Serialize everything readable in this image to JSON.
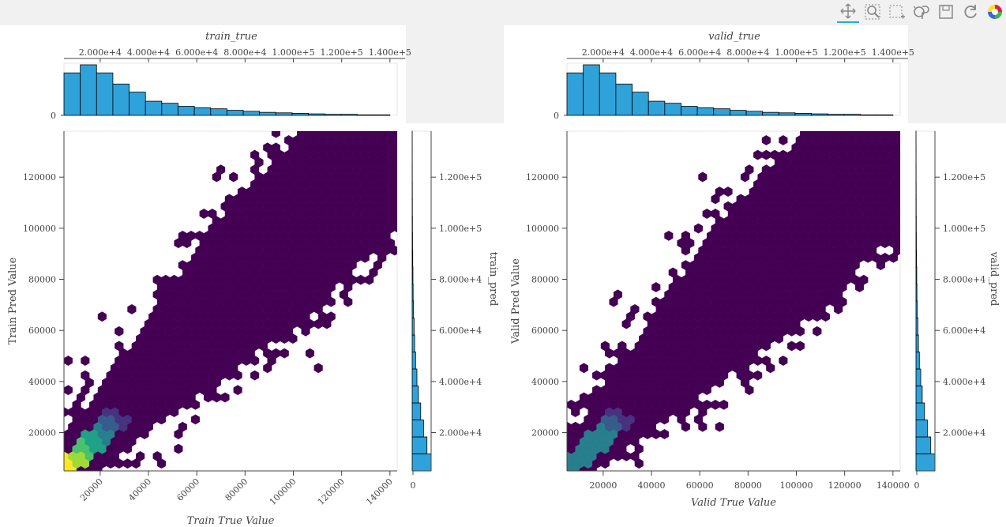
{
  "toolbar": {
    "tools": [
      {
        "name": "pan-tool",
        "icon": "pan-icon",
        "active": true
      },
      {
        "name": "box-zoom-tool",
        "icon": "box-zoom-icon",
        "active": false
      },
      {
        "name": "box-select-tool",
        "icon": "box-select-icon",
        "active": false
      },
      {
        "name": "wheel-zoom-tool",
        "icon": "wheel-zoom-icon",
        "active": false
      },
      {
        "name": "save-tool",
        "icon": "save-icon",
        "active": false
      },
      {
        "name": "reset-tool",
        "icon": "reset-icon",
        "active": false
      },
      {
        "name": "bokeh-logo",
        "icon": "bokeh-logo-icon",
        "active": false
      }
    ]
  },
  "colors": {
    "hist_fill": "#30a2da",
    "hist_stroke": "#000000",
    "viridis": [
      "#440154",
      "#46327e",
      "#365c8d",
      "#277f8e",
      "#1fa187",
      "#4ac16d",
      "#a0da39",
      "#fde725"
    ]
  },
  "chart_data": [
    {
      "type": "hexbin",
      "name": "train",
      "top_hist": {
        "title": "train_true",
        "tick_labels": [
          "2.000e+4",
          "4.000e+4",
          "6.000e+4",
          "8.000e+4",
          "1.000e+5",
          "1.200e+5",
          "1.400e+5"
        ],
        "ticks": [
          20000,
          40000,
          60000,
          80000,
          100000,
          120000,
          140000
        ],
        "y_tick_label": "0",
        "bin_edges": [
          5000,
          11750,
          18500,
          25250,
          32000,
          38750,
          45500,
          52250,
          59000,
          65750,
          72500,
          79250,
          86000,
          92750,
          99500,
          106250,
          113000,
          119750,
          126500,
          133250,
          140000
        ],
        "counts": [
          0.84,
          1.0,
          0.84,
          0.62,
          0.46,
          0.28,
          0.24,
          0.18,
          0.15,
          0.13,
          0.1,
          0.08,
          0.06,
          0.05,
          0.04,
          0.03,
          0.02,
          0.02,
          0.01,
          0.01
        ]
      },
      "main": {
        "xlabel": "Train True Value",
        "ylabel": "Train Pred Value",
        "xlim": [
          5000,
          143000
        ],
        "ylim": [
          5000,
          138000
        ],
        "x_ticks": [
          "20000",
          "40000",
          "60000",
          "80000",
          "100000",
          "120000",
          "140000"
        ],
        "x_tick_values": [
          20000,
          40000,
          60000,
          80000,
          100000,
          120000,
          140000
        ],
        "y_ticks": [
          "20000",
          "40000",
          "60000",
          "80000",
          "100000",
          "120000"
        ],
        "y_tick_values": [
          20000,
          40000,
          60000,
          80000,
          100000,
          120000
        ],
        "x_tick_rotation": "45deg"
      },
      "side_hist": {
        "title": "train_pred",
        "tick_labels": [
          "2.000e+4",
          "4.000e+4",
          "6.000e+4",
          "8.000e+4",
          "1.000e+5",
          "1.200e+5"
        ],
        "ticks": [
          20000,
          40000,
          60000,
          80000,
          100000,
          120000
        ],
        "x_tick_label": "0",
        "bin_edges": [
          5000,
          11650,
          18300,
          24950,
          31600,
          38250,
          44900,
          51550,
          58200,
          64850,
          71500,
          78150,
          84800,
          91450,
          98100,
          104750,
          111400,
          118050,
          124700,
          131350,
          138000
        ],
        "counts": [
          1.0,
          0.78,
          0.6,
          0.45,
          0.33,
          0.25,
          0.18,
          0.13,
          0.1,
          0.07,
          0.05,
          0.04,
          0.03,
          0.02,
          0.015,
          0.01,
          0.008,
          0.005,
          0.003,
          0.002
        ]
      }
    },
    {
      "type": "hexbin",
      "name": "valid",
      "top_hist": {
        "title": "valid_true",
        "tick_labels": [
          "2.000e+4",
          "4.000e+4",
          "6.000e+4",
          "8.000e+4",
          "1.000e+5",
          "1.200e+5",
          "1.400e+5"
        ],
        "ticks": [
          20000,
          40000,
          60000,
          80000,
          100000,
          120000,
          140000
        ],
        "y_tick_label": "0",
        "bin_edges": [
          5000,
          11750,
          18500,
          25250,
          32000,
          38750,
          45500,
          52250,
          59000,
          65750,
          72500,
          79250,
          86000,
          92750,
          99500,
          106250,
          113000,
          119750,
          126500,
          133250,
          140000
        ],
        "counts": [
          0.84,
          1.0,
          0.84,
          0.62,
          0.46,
          0.28,
          0.24,
          0.18,
          0.15,
          0.13,
          0.1,
          0.08,
          0.06,
          0.05,
          0.04,
          0.03,
          0.02,
          0.02,
          0.01,
          0.01
        ]
      },
      "main": {
        "xlabel": "Valid True Value",
        "ylabel": "Valid Pred Value",
        "xlim": [
          5000,
          143000
        ],
        "ylim": [
          5000,
          138000
        ],
        "x_ticks": [
          "20000",
          "40000",
          "60000",
          "80000",
          "100000",
          "120000",
          "140000"
        ],
        "x_tick_values": [
          20000,
          40000,
          60000,
          80000,
          100000,
          120000,
          140000
        ],
        "y_ticks": [
          "20000",
          "40000",
          "60000",
          "80000",
          "100000",
          "120000"
        ],
        "y_tick_values": [
          20000,
          40000,
          60000,
          80000,
          100000,
          120000
        ],
        "x_tick_rotation": "0deg"
      },
      "side_hist": {
        "title": "valid_pred",
        "tick_labels": [
          "2.000e+4",
          "4.000e+4",
          "6.000e+4",
          "8.000e+4",
          "1.000e+5",
          "1.200e+5"
        ],
        "ticks": [
          20000,
          40000,
          60000,
          80000,
          100000,
          120000
        ],
        "x_tick_label": "0",
        "bin_edges": [
          5000,
          11650,
          18300,
          24950,
          31600,
          38250,
          44900,
          51550,
          58200,
          64850,
          71500,
          78150,
          84800,
          91450,
          98100,
          104750,
          111400,
          118050,
          124700,
          131350,
          138000
        ],
        "counts": [
          1.0,
          0.78,
          0.6,
          0.45,
          0.33,
          0.25,
          0.18,
          0.13,
          0.1,
          0.07,
          0.05,
          0.04,
          0.03,
          0.02,
          0.015,
          0.01,
          0.008,
          0.005,
          0.003,
          0.002
        ]
      }
    }
  ]
}
